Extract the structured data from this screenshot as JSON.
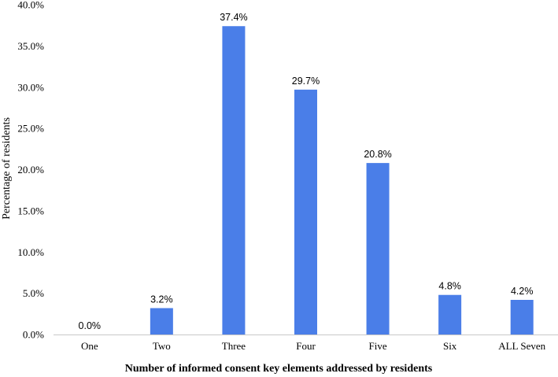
{
  "chart_data": {
    "type": "bar",
    "title": "",
    "xlabel": "Number of informed consent key elements addressed by residents",
    "ylabel": "Percentage of residents",
    "categories": [
      "One",
      "Two",
      "Three",
      "Four",
      "Five",
      "Six",
      "ALL Seven"
    ],
    "values": [
      0.0,
      3.2,
      37.4,
      29.7,
      20.8,
      4.8,
      4.2
    ],
    "data_labels": [
      "0.0%",
      "3.2%",
      "37.4%",
      "29.7%",
      "20.8%",
      "4.8%",
      "4.2%"
    ],
    "ylim": [
      0,
      40
    ],
    "y_ticks": [
      0,
      5,
      10,
      15,
      20,
      25,
      30,
      35,
      40
    ],
    "y_tick_labels": [
      "0.0%",
      "5.0%",
      "10.0%",
      "15.0%",
      "20.0%",
      "25.0%",
      "30.0%",
      "35.0%",
      "40.0%"
    ],
    "bar_color": "#4a7ee8",
    "grid": false,
    "legend": "none"
  }
}
